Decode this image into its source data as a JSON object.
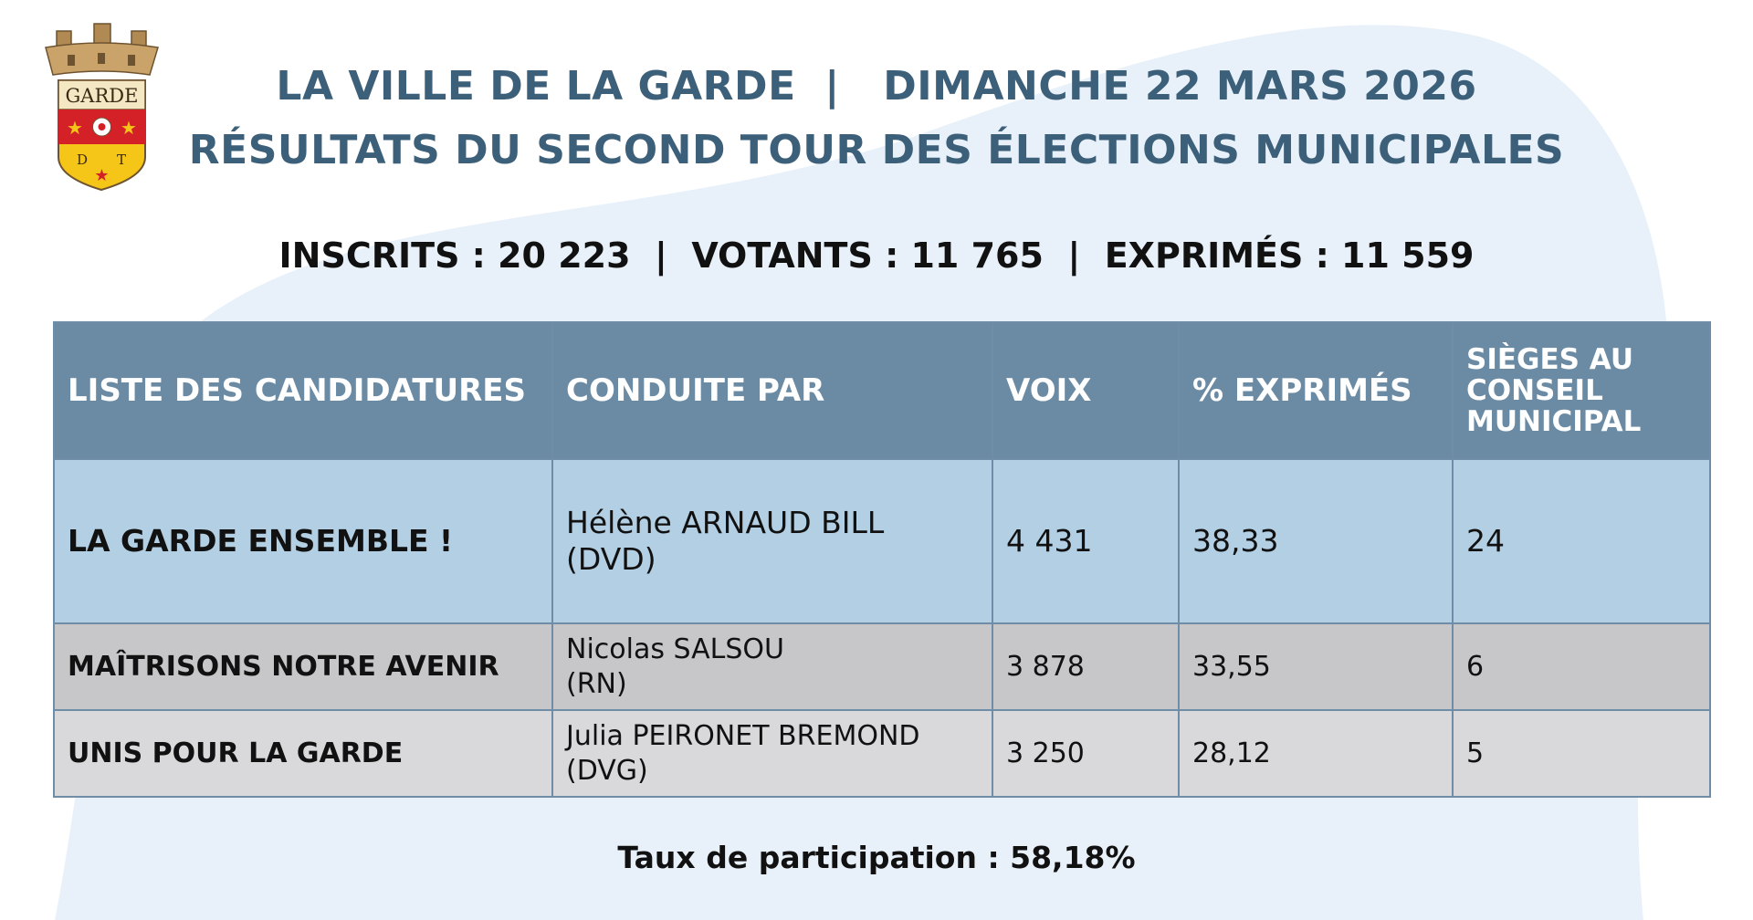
{
  "header": {
    "title_line1": "LA VILLE DE LA GARDE  |   DIMANCHE 22 MARS 2026",
    "title_line2": "RÉSULTATS DU SECOND TOUR DES ÉLECTIONS MUNICIPALES"
  },
  "logo": {
    "banner_text": "GARDE",
    "letters": [
      "D",
      "T"
    ],
    "colors": {
      "red": "#d42027",
      "yellow": "#f5c518",
      "tan": "#c9a36a"
    }
  },
  "stats": {
    "line": "INSCRITS : 20 223  |  VOTANTS : 11 765  |  EXPRIMÉS : 11 559"
  },
  "table": {
    "headers": {
      "list": "LISTE DES CANDIDATURES",
      "leader": "CONDUITE PAR",
      "votes": "VOIX",
      "percent": "% EXPRIMÉS",
      "seats": "SIÈGES AU CONSEIL MUNICIPAL"
    },
    "rows": [
      {
        "list": "LA GARDE ENSEMBLE !",
        "leader_name": "Hélène ARNAUD BILL",
        "leader_party": "(DVD)",
        "votes": "4 431",
        "percent": "38,33",
        "seats": "24"
      },
      {
        "list": "MAÎTRISONS NOTRE AVENIR",
        "leader_name": "Nicolas SALSOU",
        "leader_party": "(RN)",
        "votes": "3 878",
        "percent": "33,55",
        "seats": "6"
      },
      {
        "list": "UNIS POUR LA GARDE",
        "leader_name": "Julia PEIRONET BREMOND",
        "leader_party": "(DVG)",
        "votes": "3 250",
        "percent": "28,12",
        "seats": "5"
      }
    ]
  },
  "footer": {
    "participation": "Taux de participation : 58,18%"
  },
  "colors": {
    "title": "#3c5f7a",
    "header_bg": "#6b8ba5",
    "row1_bg": "#b3cfe3",
    "row2_bg": "#c7c7c9",
    "row3_bg": "#d9d9db",
    "background_blob": "#e8f1f9"
  }
}
